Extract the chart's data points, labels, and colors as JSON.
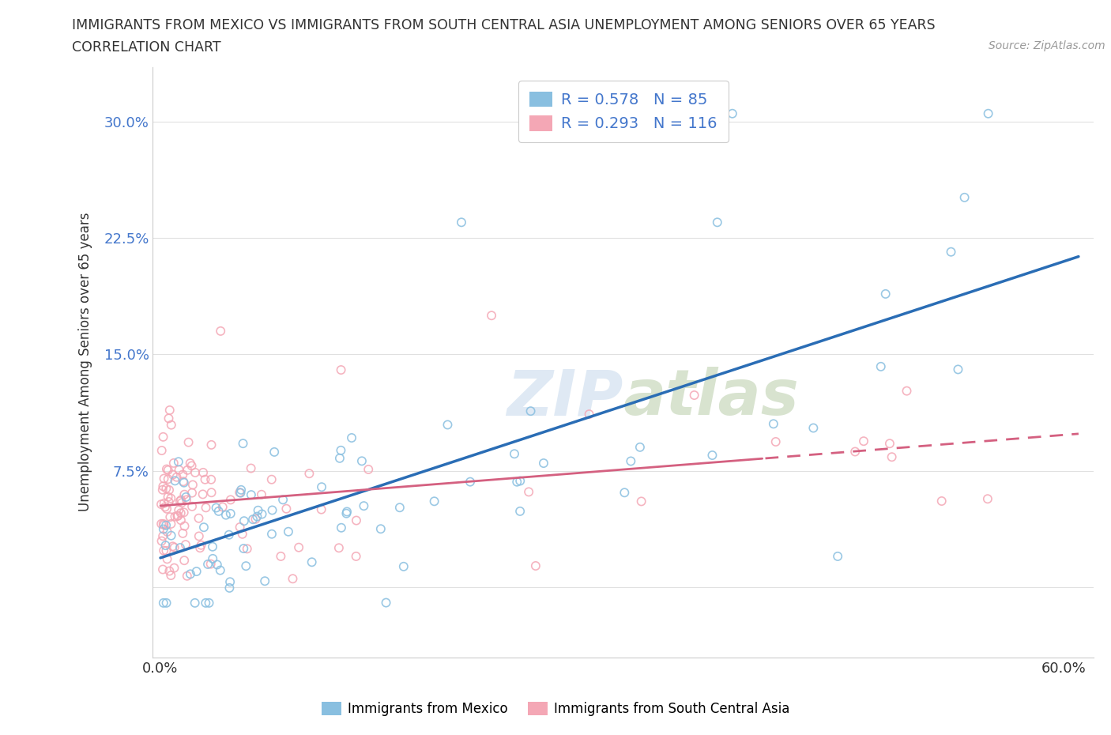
{
  "title_line1": "IMMIGRANTS FROM MEXICO VS IMMIGRANTS FROM SOUTH CENTRAL ASIA UNEMPLOYMENT AMONG SENIORS OVER 65 YEARS",
  "title_line2": "CORRELATION CHART",
  "source": "Source: ZipAtlas.com",
  "ylabel": "Unemployment Among Seniors over 65 years",
  "series1_color": "#89bfe0",
  "series2_color": "#f4a7b5",
  "series1_line_color": "#2a6db5",
  "series2_line_color": "#d46080",
  "series1_label": "Immigrants from Mexico",
  "series2_label": "Immigrants from South Central Asia",
  "series1_R": "0.578",
  "series1_N": "85",
  "series2_R": "0.293",
  "series2_N": "116",
  "watermark": "ZIPatlas",
  "background_color": "#ffffff",
  "grid_color": "#e0e0e0",
  "title_color": "#333333",
  "axis_label_color": "#4477cc",
  "ytick_vals": [
    0.0,
    0.075,
    0.15,
    0.225,
    0.3
  ],
  "ytick_labels": [
    "",
    "7.5%",
    "15.0%",
    "22.5%",
    "30.0%"
  ],
  "xtick_vals": [
    0.0,
    0.1,
    0.2,
    0.3,
    0.4,
    0.5,
    0.6
  ],
  "xtick_labels": [
    "0.0%",
    "",
    "",
    "",
    "",
    "",
    "60.0%"
  ],
  "xlim": [
    -0.005,
    0.62
  ],
  "ylim": [
    -0.045,
    0.335
  ]
}
